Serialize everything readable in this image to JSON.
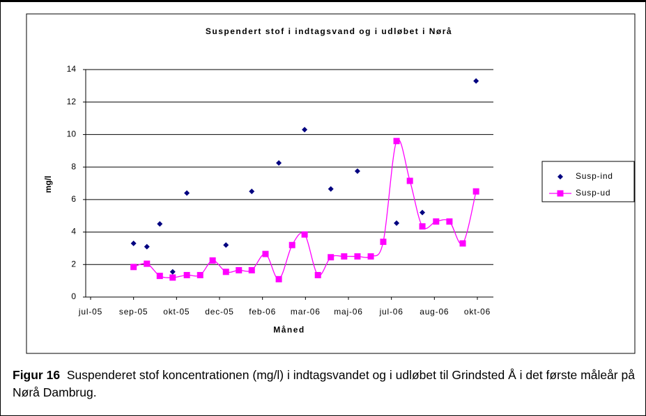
{
  "chart_data": {
    "type": "line",
    "title": "Suspendert stof i indtagsvand og i udløbet i Nørå",
    "x_label": "Måned",
    "y_label": "mg/l",
    "xlim": [
      0,
      9
    ],
    "xticks": [
      {
        "value": 0,
        "label": "jul-05"
      },
      {
        "value": 1,
        "label": "sep-05"
      },
      {
        "value": 2,
        "label": "okt-05"
      },
      {
        "value": 3,
        "label": "dec-05"
      },
      {
        "value": 4,
        "label": "feb-06"
      },
      {
        "value": 5,
        "label": "mar-06"
      },
      {
        "value": 6,
        "label": "maj-06"
      },
      {
        "value": 7,
        "label": "jul-06"
      },
      {
        "value": 8,
        "label": "aug-06"
      },
      {
        "value": 9,
        "label": "okt-06"
      }
    ],
    "ylim": [
      0,
      14
    ],
    "yticks": [
      0,
      2,
      4,
      6,
      8,
      10,
      12,
      14
    ],
    "grid": true,
    "legend": "right",
    "series": [
      {
        "name": "Susp-ind",
        "color": "#000080",
        "marker": "diamond",
        "line": false,
        "x": [
          1.0,
          1.31,
          1.61,
          1.91,
          2.24,
          3.15,
          3.75,
          4.38,
          4.98,
          5.59,
          6.21,
          7.12,
          7.72,
          8.97
        ],
        "values": [
          3.3,
          3.1,
          4.5,
          1.55,
          6.4,
          3.2,
          6.5,
          8.25,
          10.3,
          6.65,
          7.75,
          4.55,
          5.2,
          13.3
        ]
      },
      {
        "name": "Susp-ud",
        "color": "#ff00ff",
        "marker": "square",
        "line": true,
        "x": [
          1.0,
          1.31,
          1.61,
          1.91,
          2.24,
          2.55,
          2.84,
          3.15,
          3.45,
          3.75,
          4.07,
          4.38,
          4.69,
          4.98,
          5.29,
          5.59,
          5.9,
          6.21,
          6.52,
          6.81,
          7.12,
          7.43,
          7.72,
          8.04,
          8.35,
          8.66,
          8.97
        ],
        "values": [
          1.85,
          2.05,
          1.3,
          1.2,
          1.35,
          1.35,
          2.25,
          1.55,
          1.65,
          1.65,
          2.65,
          1.1,
          3.2,
          3.85,
          1.35,
          2.45,
          2.5,
          2.5,
          2.5,
          3.4,
          9.6,
          7.15,
          4.35,
          4.65,
          4.65,
          3.3,
          6.5
        ]
      }
    ]
  },
  "caption": {
    "label": "Figur 16",
    "text": "Suspenderet stof koncentrationen (mg/l) i indtagsvandet og i udløbet til Grindsted Å i det første måleår på Nørå Dambrug."
  }
}
